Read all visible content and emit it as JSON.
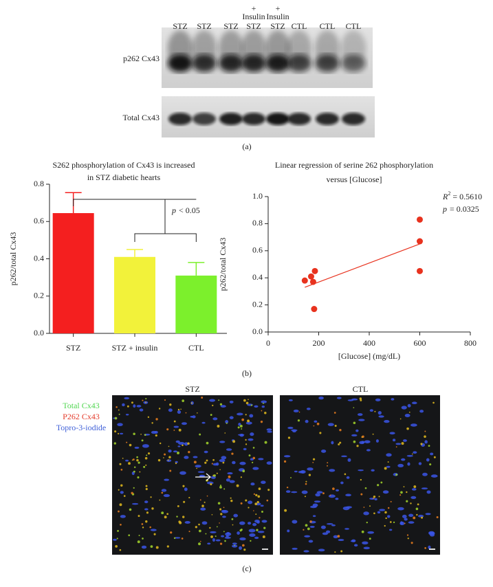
{
  "blot": {
    "lanes": [
      "STZ",
      "STZ",
      "STZ",
      "STZ",
      "STZ",
      "CTL",
      "CTL",
      "CTL"
    ],
    "lane_treatments": [
      null,
      null,
      null,
      {
        "sign": "+",
        "label": "Insulin"
      },
      {
        "sign": "+",
        "label": "Insulin"
      },
      null,
      null,
      null
    ],
    "rows": [
      "p262 Cx43",
      "Total Cx43"
    ],
    "panel_label": "(a)"
  },
  "chart_data": [
    {
      "type": "bar",
      "title": [
        "S262 phosphorylation of Cx43 is increased",
        "in STZ diabetic hearts"
      ],
      "categories": [
        "STZ",
        "STZ + insulin",
        "CTL"
      ],
      "values": [
        0.645,
        0.41,
        0.31
      ],
      "errors": [
        0.11,
        0.04,
        0.07
      ],
      "colors": [
        "#f41f1f",
        "#f2f23a",
        "#7cf02c"
      ],
      "ylabel": "p262/total Cx43",
      "ylim": [
        0,
        0.8
      ],
      "yticks": [
        {
          "value": 0,
          "label": "0.0"
        },
        0.2,
        0.4,
        0.6,
        0.8
      ],
      "significance": {
        "symbol": "p",
        "text": "< 0.05"
      }
    },
    {
      "type": "scatter",
      "title": [
        "Linear regression of serine 262 phosphorylation",
        "versus [Glucose]"
      ],
      "x": [
        145,
        170,
        178,
        185,
        182,
        600,
        600,
        600
      ],
      "values": [
        0.38,
        0.41,
        0.37,
        0.45,
        0.17,
        0.83,
        0.67,
        0.45
      ],
      "color": "#e8321e",
      "fit": {
        "x": [
          145,
          600
        ],
        "values": [
          0.33,
          0.65
        ]
      },
      "xlabel": "[Glucose] (mg/dL)",
      "ylabel": "p262/total Cx43",
      "xlim": [
        0,
        800
      ],
      "xticks": [
        0,
        200,
        400,
        600,
        800
      ],
      "ylim": [
        0,
        1
      ],
      "yticks": [
        {
          "value": 0,
          "label": "0.0"
        },
        0.2,
        0.4,
        0.6,
        0.8,
        {
          "value": 1,
          "label": "1.0"
        }
      ],
      "r_squared": {
        "symbol": "R",
        "power": "2",
        "text": "= 0.5610"
      },
      "p_value": {
        "symbol": "p",
        "text": "= 0.0325"
      }
    }
  ],
  "panel_b_label": "(b)",
  "micrograph": {
    "titles": [
      "STZ",
      "CTL"
    ],
    "legend": [
      {
        "text": "Total Cx43",
        "color": "#4fd64f"
      },
      {
        "text": "P262 Cx43",
        "color": "#e43a2a"
      },
      {
        "text": "Topro-3-iodide",
        "color": "#3e5fd8"
      }
    ],
    "panel_label": "(c)"
  }
}
